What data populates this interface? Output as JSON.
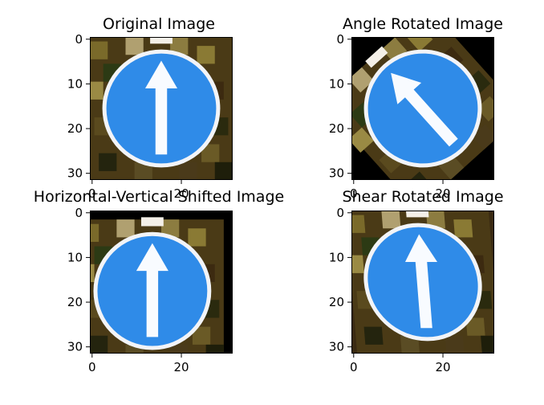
{
  "chart_data": [
    {
      "type": "image",
      "title": "Original Image",
      "xlim": [
        0,
        32
      ],
      "ylim": [
        32,
        0
      ],
      "xticks": [
        0,
        20
      ],
      "yticks": [
        0,
        10,
        20,
        30
      ],
      "transform": "none",
      "sign_color": "#2f8be8"
    },
    {
      "type": "image",
      "title": "Angle Rotated Image",
      "xlim": [
        0,
        32
      ],
      "ylim": [
        32,
        0
      ],
      "xticks": [
        0,
        20
      ],
      "yticks": [
        0,
        10,
        20,
        30
      ],
      "transform": "rotate",
      "sign_color": "#2f8be8"
    },
    {
      "type": "image",
      "title": "Horizontal-Vertical Shifted Image",
      "xlim": [
        0,
        32
      ],
      "ylim": [
        32,
        0
      ],
      "xticks": [
        0,
        20
      ],
      "yticks": [
        0,
        10,
        20,
        30
      ],
      "transform": "shift",
      "sign_color": "#2f8be8"
    },
    {
      "type": "image",
      "title": "Shear Rotated Image",
      "xlim": [
        0,
        32
      ],
      "ylim": [
        32,
        0
      ],
      "xticks": [
        0,
        20
      ],
      "yticks": [
        0,
        10,
        20,
        30
      ],
      "transform": "shear",
      "sign_color": "#2f8be8"
    }
  ]
}
